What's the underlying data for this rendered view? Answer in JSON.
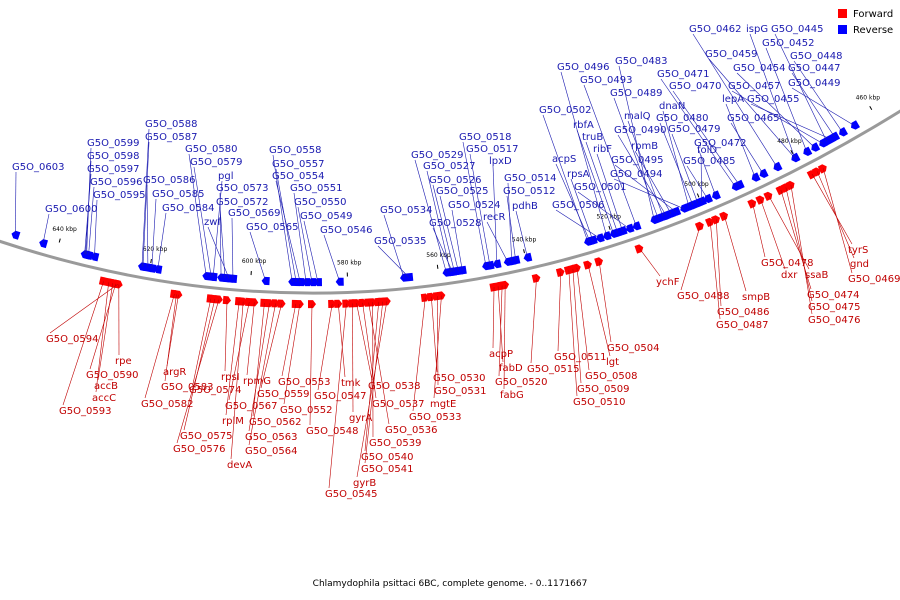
{
  "caption": "Chlamydophila psittaci 6BC, complete genome. - 0..1171667",
  "legend": [
    {
      "label": "Forward",
      "color": "#ff0000"
    },
    {
      "label": "Reverse",
      "color": "#0000ff"
    }
  ],
  "colors": {
    "forward": "#ff0000",
    "reverse": "#0000ff",
    "backbone": "#9a9a9a",
    "forward_label": "#c00000",
    "reverse_label": "#1a1ab0"
  },
  "ticks": [
    "460 kbp",
    "480 kbp",
    "500 kbp",
    "520 kbp",
    "540 kbp",
    "560 kbp",
    "580 kbp",
    "600 kbp",
    "620 kbp",
    "640 kbp"
  ],
  "genes": [
    {
      "label": "G5O_0603",
      "strand": "reverse"
    },
    {
      "label": "G5O_0600",
      "strand": "reverse"
    },
    {
      "label": "G5O_0599",
      "strand": "reverse"
    },
    {
      "label": "G5O_0598",
      "strand": "reverse"
    },
    {
      "label": "G5O_0597",
      "strand": "reverse"
    },
    {
      "label": "G5O_0596",
      "strand": "reverse"
    },
    {
      "label": "G5O_0595",
      "strand": "reverse"
    },
    {
      "label": "G5O_0588",
      "strand": "reverse"
    },
    {
      "label": "G5O_0587",
      "strand": "reverse"
    },
    {
      "label": "G5O_0586",
      "strand": "reverse"
    },
    {
      "label": "G5O_0585",
      "strand": "reverse"
    },
    {
      "label": "G5O_0584",
      "strand": "reverse"
    },
    {
      "label": "G5O_0580",
      "strand": "reverse"
    },
    {
      "label": "G5O_0579",
      "strand": "reverse"
    },
    {
      "label": "pgl",
      "strand": "reverse"
    },
    {
      "label": "G5O_0573",
      "strand": "reverse"
    },
    {
      "label": "G5O_0572",
      "strand": "reverse"
    },
    {
      "label": "zwf",
      "strand": "reverse"
    },
    {
      "label": "G5O_0569",
      "strand": "reverse"
    },
    {
      "label": "G5O_0565",
      "strand": "reverse"
    },
    {
      "label": "G5O_0558",
      "strand": "reverse"
    },
    {
      "label": "G5O_0557",
      "strand": "reverse"
    },
    {
      "label": "G5O_0554",
      "strand": "reverse"
    },
    {
      "label": "G5O_0551",
      "strand": "reverse"
    },
    {
      "label": "G5O_0550",
      "strand": "reverse"
    },
    {
      "label": "G5O_0549",
      "strand": "reverse"
    },
    {
      "label": "G5O_0546",
      "strand": "reverse"
    },
    {
      "label": "G5O_0534",
      "strand": "reverse"
    },
    {
      "label": "G5O_0535",
      "strand": "reverse"
    },
    {
      "label": "G5O_0529",
      "strand": "reverse"
    },
    {
      "label": "G5O_0527",
      "strand": "reverse"
    },
    {
      "label": "G5O_0526",
      "strand": "reverse"
    },
    {
      "label": "G5O_0525",
      "strand": "reverse"
    },
    {
      "label": "G5O_0528",
      "strand": "reverse"
    },
    {
      "label": "G5O_0524",
      "strand": "reverse"
    },
    {
      "label": "G5O_0518",
      "strand": "reverse"
    },
    {
      "label": "G5O_0517",
      "strand": "reverse"
    },
    {
      "label": "lpxD",
      "strand": "reverse"
    },
    {
      "label": "G5O_0514",
      "strand": "reverse"
    },
    {
      "label": "G5O_0512",
      "strand": "reverse"
    },
    {
      "label": "recR",
      "strand": "reverse"
    },
    {
      "label": "pdhB",
      "strand": "reverse"
    },
    {
      "label": "G5O_0502",
      "strand": "reverse"
    },
    {
      "label": "acpS",
      "strand": "reverse"
    },
    {
      "label": "rpsA",
      "strand": "reverse"
    },
    {
      "label": "G5O_0506",
      "strand": "reverse"
    },
    {
      "label": "G5O_0496",
      "strand": "reverse"
    },
    {
      "label": "rbfA",
      "strand": "reverse"
    },
    {
      "label": "truB",
      "strand": "reverse"
    },
    {
      "label": "ribF",
      "strand": "reverse"
    },
    {
      "label": "G5O_0501",
      "strand": "reverse"
    },
    {
      "label": "G5O_0493",
      "strand": "reverse"
    },
    {
      "label": "G5O_0483",
      "strand": "reverse"
    },
    {
      "label": "G5O_0489",
      "strand": "reverse"
    },
    {
      "label": "malQ",
      "strand": "reverse"
    },
    {
      "label": "G5O_0490",
      "strand": "reverse"
    },
    {
      "label": "rpmB",
      "strand": "reverse"
    },
    {
      "label": "G5O_0495",
      "strand": "reverse"
    },
    {
      "label": "G5O_0494",
      "strand": "reverse"
    },
    {
      "label": "dnaN",
      "strand": "reverse"
    },
    {
      "label": "G5O_0480",
      "strand": "reverse"
    },
    {
      "label": "G5O_0479",
      "strand": "reverse"
    },
    {
      "label": "folD",
      "strand": "reverse"
    },
    {
      "label": "G5O_0485",
      "strand": "reverse"
    },
    {
      "label": "G5O_0471",
      "strand": "reverse"
    },
    {
      "label": "G5O_0470",
      "strand": "reverse"
    },
    {
      "label": "G5O_0472",
      "strand": "reverse"
    },
    {
      "label": "lepA",
      "strand": "reverse"
    },
    {
      "label": "G5O_0465",
      "strand": "reverse"
    },
    {
      "label": "G5O_0462",
      "strand": "reverse"
    },
    {
      "label": "ispG",
      "strand": "reverse"
    },
    {
      "label": "G5O_0445",
      "strand": "reverse"
    },
    {
      "label": "G5O_0452",
      "strand": "reverse"
    },
    {
      "label": "G5O_0459",
      "strand": "reverse"
    },
    {
      "label": "G5O_0448",
      "strand": "reverse"
    },
    {
      "label": "G5O_0454",
      "strand": "reverse"
    },
    {
      "label": "G5O_0447",
      "strand": "reverse"
    },
    {
      "label": "G5O_0457",
      "strand": "reverse"
    },
    {
      "label": "G5O_0449",
      "strand": "reverse"
    },
    {
      "label": "G5O_0455",
      "strand": "reverse"
    },
    {
      "label": "G5O_0594",
      "strand": "forward"
    },
    {
      "label": "rpe",
      "strand": "forward"
    },
    {
      "label": "G5O_0590",
      "strand": "forward"
    },
    {
      "label": "accB",
      "strand": "forward"
    },
    {
      "label": "accC",
      "strand": "forward"
    },
    {
      "label": "G5O_0593",
      "strand": "forward"
    },
    {
      "label": "argR",
      "strand": "forward"
    },
    {
      "label": "G5O_0583",
      "strand": "forward"
    },
    {
      "label": "G5O_0582",
      "strand": "forward"
    },
    {
      "label": "G5O_0574",
      "strand": "forward"
    },
    {
      "label": "G5O_0575",
      "strand": "forward"
    },
    {
      "label": "G5O_0576",
      "strand": "forward"
    },
    {
      "label": "rpsI",
      "strand": "forward"
    },
    {
      "label": "rplM",
      "strand": "forward"
    },
    {
      "label": "devA",
      "strand": "forward"
    },
    {
      "label": "rpmG",
      "strand": "forward"
    },
    {
      "label": "G5O_0567",
      "strand": "forward"
    },
    {
      "label": "G5O_0562",
      "strand": "forward"
    },
    {
      "label": "G5O_0563",
      "strand": "forward"
    },
    {
      "label": "G5O_0564",
      "strand": "forward"
    },
    {
      "label": "G5O_0559",
      "strand": "forward"
    },
    {
      "label": "G5O_0553",
      "strand": "forward"
    },
    {
      "label": "G5O_0552",
      "strand": "forward"
    },
    {
      "label": "G5O_0548",
      "strand": "forward"
    },
    {
      "label": "tmk",
      "strand": "forward"
    },
    {
      "label": "G5O_0547",
      "strand": "forward"
    },
    {
      "label": "gyrA",
      "strand": "forward"
    },
    {
      "label": "G5O_0538",
      "strand": "forward"
    },
    {
      "label": "G5O_0537",
      "strand": "forward"
    },
    {
      "label": "G5O_0536",
      "strand": "forward"
    },
    {
      "label": "G5O_0539",
      "strand": "forward"
    },
    {
      "label": "G5O_0540",
      "strand": "forward"
    },
    {
      "label": "G5O_0541",
      "strand": "forward"
    },
    {
      "label": "gyrB",
      "strand": "forward"
    },
    {
      "label": "G5O_0545",
      "strand": "forward"
    },
    {
      "label": "G5O_0530",
      "strand": "forward"
    },
    {
      "label": "G5O_0531",
      "strand": "forward"
    },
    {
      "label": "mgtE",
      "strand": "forward"
    },
    {
      "label": "G5O_0533",
      "strand": "forward"
    },
    {
      "label": "acpP",
      "strand": "forward"
    },
    {
      "label": "fabD",
      "strand": "forward"
    },
    {
      "label": "G5O_0520",
      "strand": "forward"
    },
    {
      "label": "fabG",
      "strand": "forward"
    },
    {
      "label": "G5O_0515",
      "strand": "forward"
    },
    {
      "label": "G5O_0511",
      "strand": "forward"
    },
    {
      "label": "lgt",
      "strand": "forward"
    },
    {
      "label": "G5O_0508",
      "strand": "forward"
    },
    {
      "label": "G5O_0509",
      "strand": "forward"
    },
    {
      "label": "G5O_0510",
      "strand": "forward"
    },
    {
      "label": "G5O_0504",
      "strand": "forward"
    },
    {
      "label": "ychF",
      "strand": "forward"
    },
    {
      "label": "G5O_0488",
      "strand": "forward"
    },
    {
      "label": "smpB",
      "strand": "forward"
    },
    {
      "label": "G5O_0486",
      "strand": "forward"
    },
    {
      "label": "G5O_0487",
      "strand": "forward"
    },
    {
      "label": "G5O_0478",
      "strand": "forward"
    },
    {
      "label": "dxr",
      "strand": "forward"
    },
    {
      "label": "ssaB",
      "strand": "forward"
    },
    {
      "label": "G5O_0474",
      "strand": "forward"
    },
    {
      "label": "G5O_0475",
      "strand": "forward"
    },
    {
      "label": "G5O_0476",
      "strand": "forward"
    },
    {
      "label": "tyrS",
      "strand": "forward"
    },
    {
      "label": "gnd",
      "strand": "forward"
    },
    {
      "label": "G5O_0469",
      "strand": "forward"
    }
  ]
}
